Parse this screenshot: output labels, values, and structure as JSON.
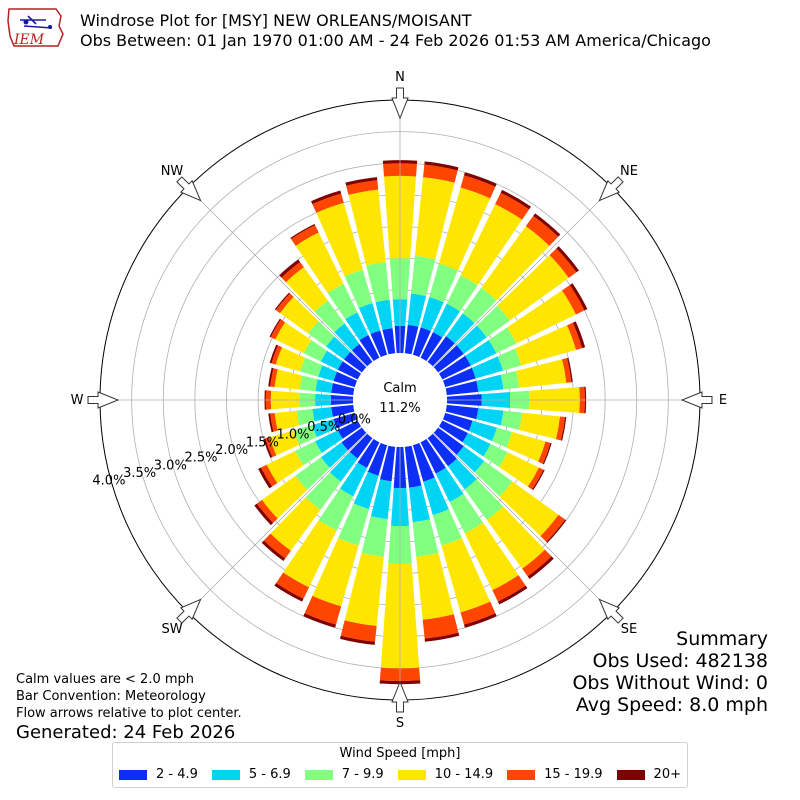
{
  "header": {
    "title": "Windrose Plot for [MSY] NEW ORLEANS/MOISANT",
    "subtitle": "Obs Between: 01 Jan 1970 01:00 AM - 24 Feb 2026 01:53 AM America/Chicago",
    "logo_text": "IEM"
  },
  "compass": {
    "N": "N",
    "NE": "NE",
    "E": "E",
    "SE": "SE",
    "S": "S",
    "SW": "SW",
    "W": "W",
    "NW": "NW"
  },
  "center": {
    "calm_label": "Calm",
    "calm_value": "11.2%"
  },
  "notes": {
    "line1": "Calm values are < 2.0 mph",
    "line2": "Bar Convention: Meteorology",
    "line3": "Flow arrows relative to plot center.",
    "generated": "Generated: 24 Feb 2026"
  },
  "summary": {
    "heading": "Summary",
    "obs_used": "Obs Used: 482138",
    "obs_without_wind": "Obs Without Wind: 0",
    "avg_speed": "Avg Speed: 8.0 mph"
  },
  "legend": {
    "title": "Wind Speed [mph]",
    "items": [
      {
        "label": "2 - 4.9",
        "color": "#0d2ff5"
      },
      {
        "label": "5 - 6.9",
        "color": "#00d4f5"
      },
      {
        "label": "7 - 9.9",
        "color": "#80ff80"
      },
      {
        "label": "10 - 14.9",
        "color": "#ffe600"
      },
      {
        "label": "15 - 19.9",
        "color": "#ff4500"
      },
      {
        "label": "20+",
        "color": "#800000"
      }
    ]
  },
  "chart_data": {
    "type": "windrose",
    "title": "Windrose Plot for [MSY] NEW ORLEANS/MOISANT",
    "radial_unit": "%",
    "radial_ticks": [
      "0.0%",
      "0.5%",
      "1.0%",
      "1.5%",
      "2.0%",
      "2.5%",
      "3.0%",
      "3.5%",
      "4.0%"
    ],
    "radial_range": [
      0,
      4.0
    ],
    "grid": true,
    "calm_percent": 11.2,
    "bins": [
      "2 - 4.9",
      "5 - 6.9",
      "7 - 9.9",
      "10 - 14.9",
      "15 - 19.9",
      "20+"
    ],
    "colors": [
      "#0d2ff5",
      "#00d4f5",
      "#80ff80",
      "#ffe600",
      "#ff4500",
      "#800000"
    ],
    "directions_deg": [
      0,
      10,
      20,
      30,
      40,
      50,
      60,
      70,
      80,
      90,
      100,
      110,
      120,
      130,
      140,
      150,
      160,
      170,
      180,
      190,
      200,
      210,
      220,
      230,
      240,
      250,
      260,
      270,
      280,
      290,
      300,
      310,
      320,
      330,
      340,
      350
    ],
    "cumulative_percent": [
      [
        0.43,
        0.85,
        1.5,
        2.8,
        3.0,
        3.05
      ],
      [
        0.45,
        0.95,
        1.55,
        2.8,
        3.0,
        3.05
      ],
      [
        0.45,
        0.95,
        1.5,
        2.75,
        2.95,
        3.0
      ],
      [
        0.45,
        0.95,
        1.45,
        2.7,
        2.9,
        2.95
      ],
      [
        0.5,
        0.95,
        1.45,
        2.65,
        2.85,
        2.9
      ],
      [
        0.5,
        0.95,
        1.4,
        2.55,
        2.7,
        2.75
      ],
      [
        0.5,
        0.95,
        1.3,
        2.35,
        2.5,
        2.55
      ],
      [
        0.5,
        0.95,
        1.25,
        2.15,
        2.25,
        2.3
      ],
      [
        0.5,
        0.9,
        1.15,
        1.9,
        1.98,
        2.0
      ],
      [
        0.55,
        1.0,
        1.3,
        2.1,
        2.18,
        2.2
      ],
      [
        0.5,
        0.9,
        1.2,
        1.8,
        1.88,
        1.9
      ],
      [
        0.45,
        0.85,
        1.1,
        1.65,
        1.73,
        1.75
      ],
      [
        0.45,
        0.85,
        1.15,
        1.7,
        1.78,
        1.8
      ],
      [
        0.5,
        0.9,
        1.45,
        2.35,
        2.48,
        2.5
      ],
      [
        0.55,
        1.0,
        1.6,
        2.55,
        2.7,
        2.75
      ],
      [
        0.55,
        1.05,
        1.6,
        2.6,
        2.8,
        2.85
      ],
      [
        0.6,
        1.15,
        1.65,
        2.75,
        2.95,
        3.0
      ],
      [
        0.65,
        1.2,
        1.75,
        2.75,
        3.05,
        3.1
      ],
      [
        0.65,
        1.25,
        1.85,
        3.5,
        3.7,
        3.75
      ],
      [
        0.55,
        1.15,
        1.75,
        2.85,
        3.1,
        3.15
      ],
      [
        0.5,
        1.05,
        1.65,
        2.65,
        2.95,
        3.0
      ],
      [
        0.45,
        0.95,
        1.55,
        2.55,
        2.75,
        2.8
      ],
      [
        0.4,
        0.85,
        1.4,
        2.2,
        2.35,
        2.4
      ],
      [
        0.4,
        0.8,
        1.3,
        1.95,
        2.05,
        2.1
      ],
      [
        0.35,
        0.75,
        1.1,
        1.6,
        1.7,
        1.75
      ],
      [
        0.35,
        0.7,
        1.0,
        1.4,
        1.47,
        1.5
      ],
      [
        0.35,
        0.65,
        0.9,
        1.25,
        1.32,
        1.35
      ],
      [
        0.35,
        0.6,
        0.85,
        1.3,
        1.38,
        1.4
      ],
      [
        0.35,
        0.6,
        0.85,
        1.25,
        1.32,
        1.35
      ],
      [
        0.35,
        0.6,
        0.9,
        1.3,
        1.37,
        1.4
      ],
      [
        0.35,
        0.65,
        0.95,
        1.45,
        1.53,
        1.55
      ],
      [
        0.35,
        0.7,
        1.05,
        1.6,
        1.68,
        1.7
      ],
      [
        0.35,
        0.75,
        1.2,
        1.85,
        1.95,
        2.0
      ],
      [
        0.4,
        0.8,
        1.3,
        2.2,
        2.33,
        2.35
      ],
      [
        0.4,
        0.85,
        1.4,
        2.5,
        2.65,
        2.7
      ],
      [
        0.4,
        0.85,
        1.45,
        2.6,
        2.75,
        2.8
      ]
    ]
  }
}
